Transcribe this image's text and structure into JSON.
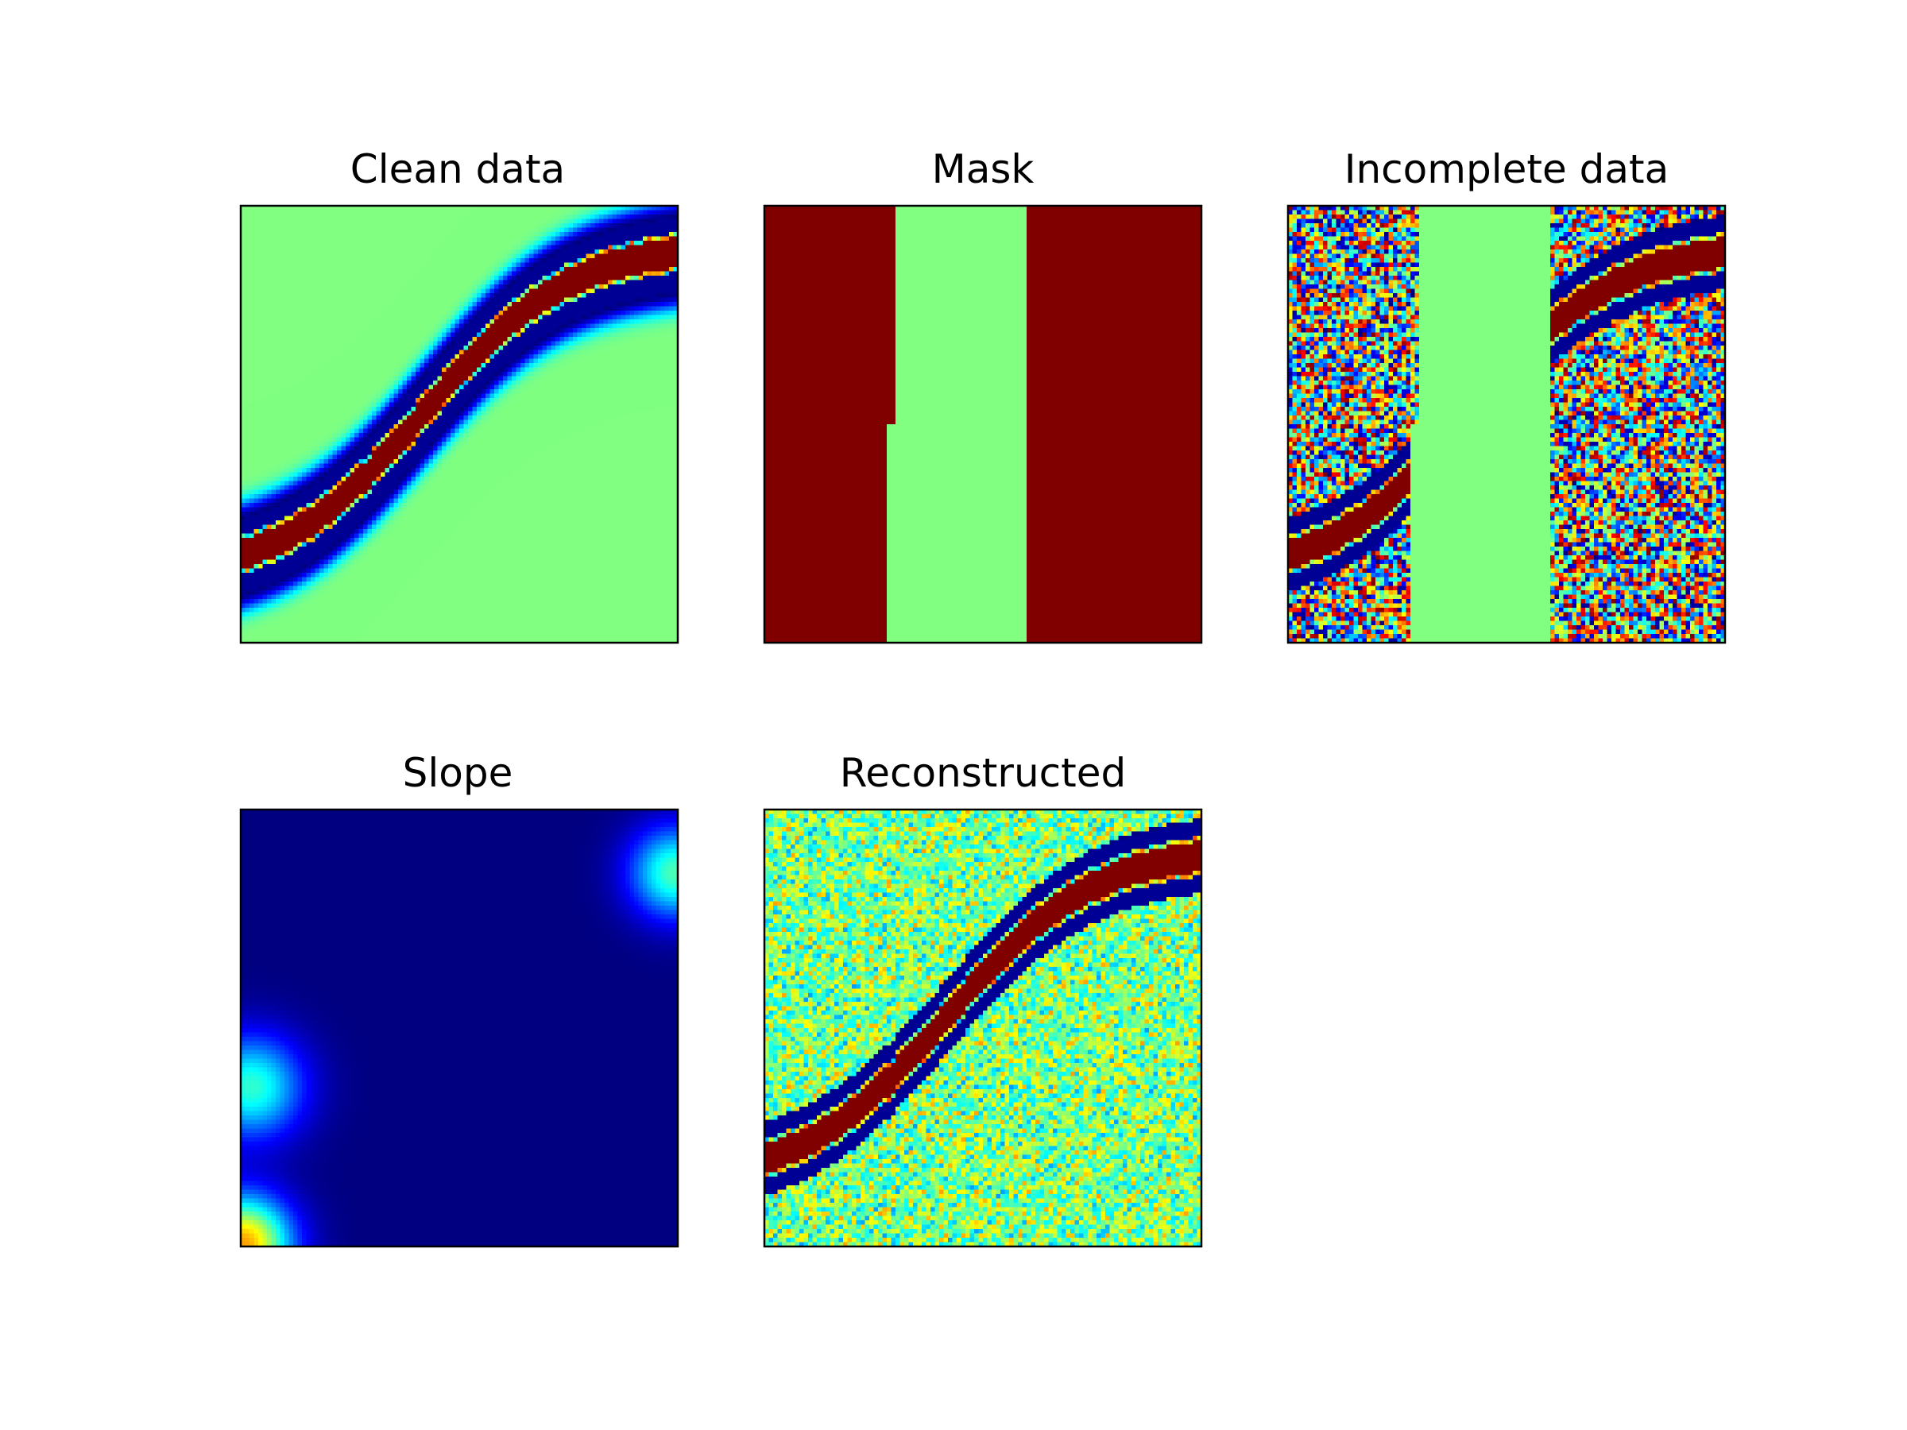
{
  "figure": {
    "colormap": "jet",
    "background": "#ffffff",
    "frame_color": "#000000"
  },
  "chart_data": [
    {
      "type": "heatmap",
      "title": "Clean data",
      "pattern": "clean",
      "grid": [
        100,
        100
      ],
      "colormap": "jet",
      "axes_ticks": false
    },
    {
      "type": "heatmap",
      "title": "Mask",
      "pattern": "mask",
      "grid": [
        100,
        100
      ],
      "colormap": "jet",
      "axes_ticks": false
    },
    {
      "type": "heatmap",
      "title": "Incomplete data",
      "pattern": "incomplete",
      "grid": [
        100,
        100
      ],
      "colormap": "jet",
      "axes_ticks": false
    },
    {
      "type": "heatmap",
      "title": "Slope",
      "pattern": "slope",
      "grid": [
        100,
        100
      ],
      "colormap": "jet",
      "axes_ticks": false
    },
    {
      "type": "heatmap",
      "title": "Reconstructed",
      "pattern": "reconstructed",
      "grid": [
        100,
        100
      ],
      "colormap": "jet",
      "axes_ticks": false
    }
  ]
}
